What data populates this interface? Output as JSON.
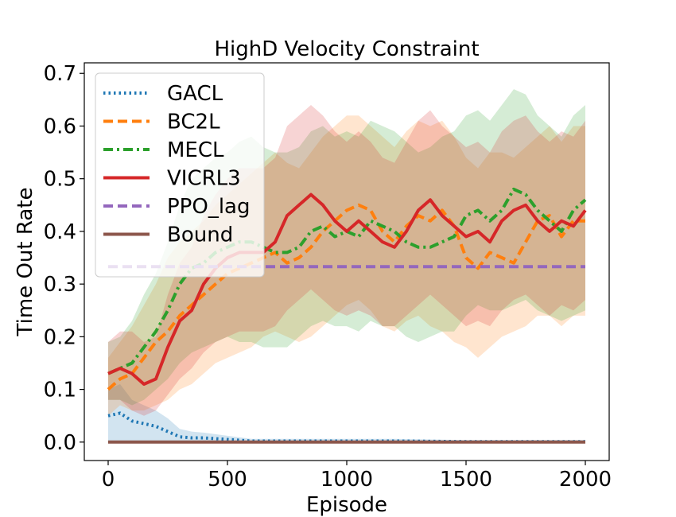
{
  "chart_data": {
    "type": "line",
    "title": "HighD Velocity Constraint",
    "xlabel": "Episode",
    "ylabel": "Time Out Rate",
    "xlim": [
      -100,
      2100
    ],
    "ylim": [
      -0.035,
      0.72
    ],
    "xticks": [
      0,
      500,
      1000,
      1500,
      2000
    ],
    "yticks": [
      0.0,
      0.1,
      0.2,
      0.3,
      0.4,
      0.5,
      0.6,
      0.7
    ],
    "ytick_labels": [
      "0.0",
      "0.1",
      "0.2",
      "0.3",
      "0.4",
      "0.5",
      "0.6",
      "0.7"
    ],
    "grid": false,
    "legend_placement": "upper-left",
    "series": [
      {
        "name": "GACL",
        "color": "#1f77b4",
        "style": "dotted",
        "band": true,
        "x": [
          0,
          50,
          100,
          150,
          200,
          250,
          300,
          350,
          400,
          500,
          600,
          800,
          1000,
          1200,
          1500,
          2000
        ],
        "values": [
          0.05,
          0.055,
          0.04,
          0.035,
          0.03,
          0.02,
          0.01,
          0.008,
          0.008,
          0.005,
          0.002,
          0.002,
          0.002,
          0.002,
          0.001,
          0.001
        ],
        "lower": [
          0.0,
          0.0,
          0.0,
          0.0,
          0.0,
          0.0,
          0.0,
          0.0,
          0.0,
          0.0,
          0.0,
          0.0,
          0.0,
          0.0,
          0.0,
          0.0
        ],
        "upper": [
          0.1,
          0.11,
          0.08,
          0.07,
          0.06,
          0.045,
          0.025,
          0.02,
          0.018,
          0.012,
          0.006,
          0.006,
          0.006,
          0.006,
          0.004,
          0.004
        ]
      },
      {
        "name": "BC2L",
        "color": "#ff7f0e",
        "style": "dashed",
        "band": true,
        "x": [
          0,
          50,
          100,
          150,
          200,
          250,
          300,
          350,
          400,
          450,
          500,
          550,
          600,
          650,
          700,
          750,
          800,
          850,
          900,
          950,
          1000,
          1050,
          1100,
          1150,
          1200,
          1250,
          1300,
          1350,
          1400,
          1450,
          1500,
          1550,
          1600,
          1650,
          1700,
          1750,
          1800,
          1850,
          1900,
          1950,
          2000
        ],
        "values": [
          0.1,
          0.12,
          0.13,
          0.16,
          0.19,
          0.21,
          0.24,
          0.26,
          0.28,
          0.3,
          0.32,
          0.33,
          0.34,
          0.35,
          0.36,
          0.34,
          0.35,
          0.37,
          0.4,
          0.42,
          0.44,
          0.45,
          0.44,
          0.4,
          0.38,
          0.41,
          0.43,
          0.42,
          0.44,
          0.41,
          0.35,
          0.33,
          0.36,
          0.35,
          0.34,
          0.38,
          0.42,
          0.43,
          0.39,
          0.42,
          0.42
        ],
        "lower": [
          0.05,
          0.07,
          0.06,
          0.06,
          0.07,
          0.08,
          0.1,
          0.11,
          0.13,
          0.15,
          0.16,
          0.17,
          0.18,
          0.2,
          0.21,
          0.2,
          0.19,
          0.2,
          0.22,
          0.24,
          0.26,
          0.27,
          0.25,
          0.22,
          0.21,
          0.23,
          0.24,
          0.22,
          0.21,
          0.19,
          0.18,
          0.16,
          0.18,
          0.2,
          0.21,
          0.22,
          0.24,
          0.24,
          0.22,
          0.24,
          0.24
        ],
        "upper": [
          0.16,
          0.19,
          0.22,
          0.26,
          0.3,
          0.35,
          0.38,
          0.4,
          0.42,
          0.45,
          0.47,
          0.49,
          0.51,
          0.53,
          0.55,
          0.53,
          0.52,
          0.55,
          0.58,
          0.6,
          0.62,
          0.62,
          0.6,
          0.58,
          0.56,
          0.59,
          0.61,
          0.6,
          0.61,
          0.58,
          0.54,
          0.52,
          0.55,
          0.55,
          0.54,
          0.56,
          0.58,
          0.6,
          0.57,
          0.6,
          0.6
        ]
      },
      {
        "name": "MECL",
        "color": "#2ca02c",
        "style": "dashdot",
        "band": true,
        "x": [
          0,
          50,
          100,
          150,
          200,
          250,
          300,
          350,
          400,
          450,
          500,
          550,
          600,
          650,
          700,
          750,
          800,
          850,
          900,
          950,
          1000,
          1050,
          1100,
          1150,
          1200,
          1250,
          1300,
          1350,
          1400,
          1450,
          1500,
          1550,
          1600,
          1650,
          1700,
          1750,
          1800,
          1850,
          1900,
          1950,
          2000
        ],
        "values": [
          0.13,
          0.14,
          0.15,
          0.18,
          0.21,
          0.25,
          0.3,
          0.33,
          0.34,
          0.36,
          0.37,
          0.38,
          0.38,
          0.37,
          0.36,
          0.36,
          0.37,
          0.4,
          0.41,
          0.39,
          0.4,
          0.39,
          0.42,
          0.41,
          0.4,
          0.38,
          0.37,
          0.37,
          0.38,
          0.39,
          0.43,
          0.44,
          0.42,
          0.44,
          0.48,
          0.47,
          0.44,
          0.42,
          0.4,
          0.44,
          0.46
        ],
        "lower": [
          0.08,
          0.08,
          0.07,
          0.08,
          0.1,
          0.12,
          0.15,
          0.17,
          0.18,
          0.19,
          0.2,
          0.19,
          0.19,
          0.18,
          0.18,
          0.18,
          0.2,
          0.22,
          0.23,
          0.22,
          0.22,
          0.21,
          0.23,
          0.22,
          0.22,
          0.2,
          0.19,
          0.2,
          0.21,
          0.21,
          0.24,
          0.26,
          0.25,
          0.25,
          0.26,
          0.27,
          0.25,
          0.24,
          0.23,
          0.24,
          0.25
        ],
        "upper": [
          0.19,
          0.2,
          0.23,
          0.28,
          0.32,
          0.38,
          0.45,
          0.5,
          0.52,
          0.54,
          0.55,
          0.57,
          0.58,
          0.56,
          0.55,
          0.55,
          0.56,
          0.59,
          0.6,
          0.58,
          0.59,
          0.58,
          0.61,
          0.6,
          0.59,
          0.57,
          0.55,
          0.56,
          0.58,
          0.59,
          0.62,
          0.63,
          0.61,
          0.64,
          0.67,
          0.66,
          0.62,
          0.6,
          0.58,
          0.62,
          0.64
        ]
      },
      {
        "name": "VICRL3",
        "color": "#d62728",
        "style": "solid",
        "band": true,
        "x": [
          0,
          50,
          100,
          150,
          200,
          250,
          300,
          350,
          400,
          450,
          500,
          550,
          600,
          650,
          700,
          750,
          800,
          850,
          900,
          950,
          1000,
          1050,
          1100,
          1150,
          1200,
          1250,
          1300,
          1350,
          1400,
          1450,
          1500,
          1550,
          1600,
          1650,
          1700,
          1750,
          1800,
          1850,
          1900,
          1950,
          2000
        ],
        "values": [
          0.13,
          0.14,
          0.13,
          0.11,
          0.12,
          0.18,
          0.23,
          0.25,
          0.3,
          0.33,
          0.35,
          0.36,
          0.36,
          0.36,
          0.38,
          0.43,
          0.45,
          0.47,
          0.45,
          0.42,
          0.4,
          0.42,
          0.4,
          0.38,
          0.37,
          0.4,
          0.44,
          0.46,
          0.43,
          0.41,
          0.39,
          0.4,
          0.38,
          0.42,
          0.44,
          0.45,
          0.42,
          0.4,
          0.42,
          0.41,
          0.44
        ],
        "lower": [
          0.08,
          0.08,
          0.06,
          0.05,
          0.06,
          0.09,
          0.12,
          0.14,
          0.17,
          0.19,
          0.2,
          0.21,
          0.21,
          0.21,
          0.22,
          0.25,
          0.27,
          0.29,
          0.27,
          0.25,
          0.24,
          0.25,
          0.24,
          0.22,
          0.22,
          0.24,
          0.26,
          0.28,
          0.26,
          0.24,
          0.22,
          0.23,
          0.22,
          0.25,
          0.27,
          0.28,
          0.26,
          0.24,
          0.26,
          0.25,
          0.27
        ],
        "upper": [
          0.19,
          0.21,
          0.21,
          0.19,
          0.2,
          0.28,
          0.34,
          0.37,
          0.43,
          0.47,
          0.5,
          0.52,
          0.52,
          0.52,
          0.54,
          0.6,
          0.62,
          0.64,
          0.62,
          0.59,
          0.57,
          0.59,
          0.57,
          0.54,
          0.53,
          0.57,
          0.61,
          0.63,
          0.6,
          0.58,
          0.56,
          0.57,
          0.55,
          0.59,
          0.61,
          0.62,
          0.59,
          0.57,
          0.59,
          0.58,
          0.61
        ]
      },
      {
        "name": "PPO_lag",
        "color": "#9467bd",
        "style": "dashed",
        "band": false,
        "x": [
          0,
          2000
        ],
        "values": [
          0.333,
          0.333
        ]
      },
      {
        "name": "Bound",
        "color": "#8c564b",
        "style": "solid",
        "band": false,
        "x": [
          0,
          2000
        ],
        "values": [
          0.0,
          0.0
        ]
      }
    ]
  }
}
